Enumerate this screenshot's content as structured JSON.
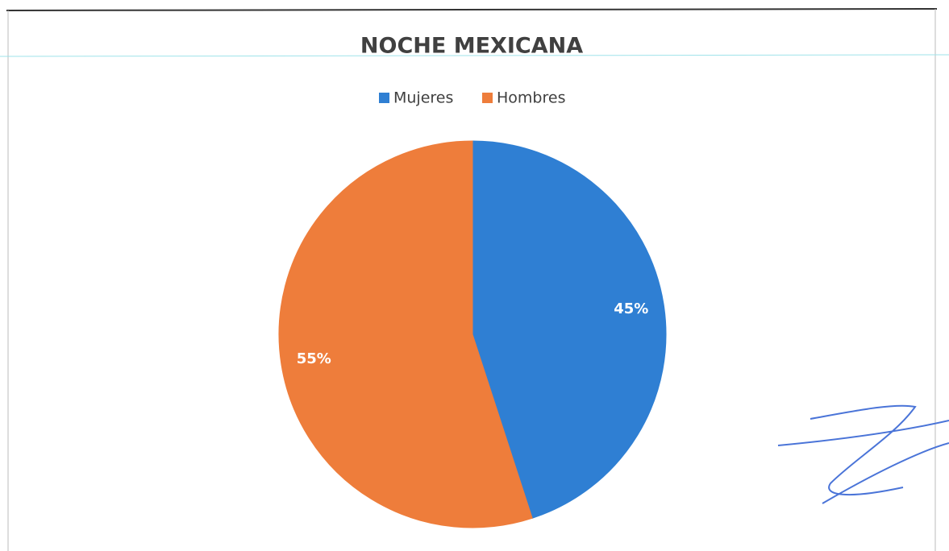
{
  "chart_data": {
    "type": "pie",
    "title": "NOCHE MEXICANA",
    "categories": [
      "Mujeres",
      "Hombres"
    ],
    "values": [
      45,
      55
    ],
    "value_labels": [
      "45%",
      "55%"
    ],
    "colors": [
      "#2f7fd3",
      "#ee7d3b"
    ],
    "legend": "top"
  }
}
